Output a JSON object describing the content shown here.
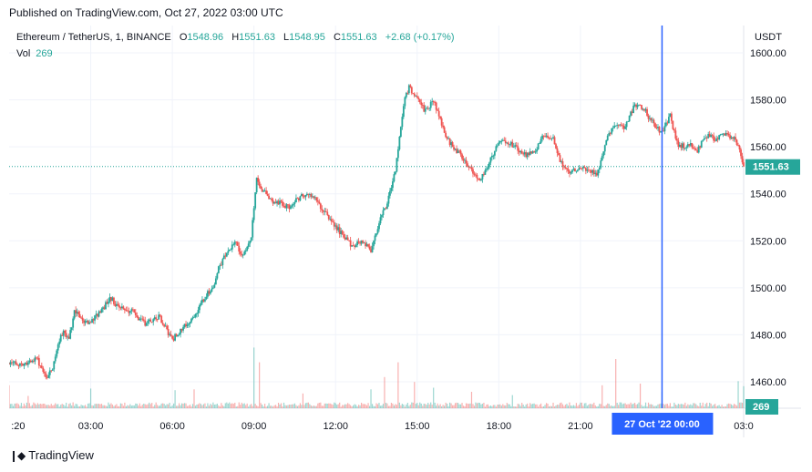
{
  "header": {
    "published": "Published on TradingView.com, Oct 27, 2022 03:00 UTC"
  },
  "legend": {
    "symbol": "Ethereum / TetherUS, 1, BINANCE",
    "o_label": "O",
    "o_value": "1548.96",
    "h_label": "H",
    "h_value": "1551.63",
    "l_label": "L",
    "l_value": "1548.95",
    "c_label": "C",
    "c_value": "1551.63",
    "change": "+2.68 (+0.17%)",
    "vol_label": "Vol",
    "vol_value": "269"
  },
  "axis": {
    "currency": "USDT"
  },
  "crosshair": {
    "time_label": "27 Oct '22   00:00"
  },
  "price_badge": "1551.63",
  "volume_badge": "269",
  "footer": {
    "brand": "TradingView"
  },
  "colors": {
    "up": "#26a69a",
    "down": "#ef5350",
    "crosshair": "#2962ff",
    "grid": "#f0f3fa"
  },
  "chart_data": {
    "type": "candlestick",
    "symbol": "Ethereum / TetherUS",
    "interval": "1",
    "exchange": "BINANCE",
    "y_unit": "USDT",
    "ylim": [
      1452,
      1600
    ],
    "yticks": [
      1600,
      1580,
      1560,
      1540,
      1520,
      1500,
      1480,
      1460
    ],
    "ytick_labels": [
      "1600.00",
      "1580.00",
      "1560.00",
      "1540.00",
      "1520.00",
      "1500.00",
      "1480.00",
      "1460.00"
    ],
    "xtick_labels": [
      ":20",
      "03:00",
      "06:00",
      "09:00",
      "12:00",
      "15:00",
      "18:00",
      "21:00",
      "03:0"
    ],
    "x_hours": [
      0.33,
      3,
      6,
      9,
      12,
      15,
      18,
      21,
      27
    ],
    "x_range_hours": [
      0,
      27
    ],
    "last_price": 1551.63,
    "crosshair_hour": 24,
    "price_path": [
      [
        0.0,
        1468
      ],
      [
        0.5,
        1467
      ],
      [
        1.0,
        1470
      ],
      [
        1.2,
        1466
      ],
      [
        1.4,
        1462
      ],
      [
        1.6,
        1466
      ],
      [
        1.8,
        1476
      ],
      [
        2.0,
        1482
      ],
      [
        2.2,
        1478
      ],
      [
        2.4,
        1490
      ],
      [
        2.7,
        1486
      ],
      [
        3.0,
        1485
      ],
      [
        3.2,
        1488
      ],
      [
        3.5,
        1492
      ],
      [
        3.7,
        1496
      ],
      [
        4.0,
        1492
      ],
      [
        4.5,
        1490
      ],
      [
        5.0,
        1485
      ],
      [
        5.5,
        1488
      ],
      [
        6.0,
        1478
      ],
      [
        6.3,
        1482
      ],
      [
        6.6,
        1485
      ],
      [
        7.0,
        1492
      ],
      [
        7.3,
        1498
      ],
      [
        7.5,
        1500
      ],
      [
        7.7,
        1508
      ],
      [
        8.0,
        1515
      ],
      [
        8.3,
        1520
      ],
      [
        8.6,
        1513
      ],
      [
        8.9,
        1522
      ],
      [
        9.1,
        1547
      ],
      [
        9.3,
        1542
      ],
      [
        9.6,
        1537
      ],
      [
        10.0,
        1536
      ],
      [
        10.3,
        1534
      ],
      [
        10.6,
        1538
      ],
      [
        11.0,
        1540
      ],
      [
        11.3,
        1537
      ],
      [
        11.6,
        1532
      ],
      [
        12.0,
        1526
      ],
      [
        12.3,
        1522
      ],
      [
        12.6,
        1518
      ],
      [
        13.0,
        1520
      ],
      [
        13.3,
        1516
      ],
      [
        13.6,
        1528
      ],
      [
        13.9,
        1536
      ],
      [
        14.2,
        1550
      ],
      [
        14.5,
        1578
      ],
      [
        14.7,
        1586
      ],
      [
        15.0,
        1580
      ],
      [
        15.3,
        1575
      ],
      [
        15.6,
        1580
      ],
      [
        16.0,
        1566
      ],
      [
        16.3,
        1560
      ],
      [
        16.6,
        1557
      ],
      [
        17.0,
        1550
      ],
      [
        17.3,
        1546
      ],
      [
        17.6,
        1552
      ],
      [
        18.0,
        1562
      ],
      [
        18.3,
        1562
      ],
      [
        18.6,
        1560
      ],
      [
        19.0,
        1556
      ],
      [
        19.3,
        1558
      ],
      [
        19.6,
        1564
      ],
      [
        20.0,
        1563
      ],
      [
        20.3,
        1553
      ],
      [
        20.6,
        1549
      ],
      [
        21.0,
        1552
      ],
      [
        21.3,
        1550
      ],
      [
        21.6,
        1548
      ],
      [
        22.0,
        1565
      ],
      [
        22.3,
        1570
      ],
      [
        22.6,
        1568
      ],
      [
        23.0,
        1578
      ],
      [
        23.3,
        1577
      ],
      [
        23.6,
        1571
      ],
      [
        24.0,
        1566
      ],
      [
        24.3,
        1573
      ],
      [
        24.6,
        1560
      ],
      [
        25.0,
        1561
      ],
      [
        25.3,
        1558
      ],
      [
        25.6,
        1565
      ],
      [
        26.0,
        1563
      ],
      [
        26.3,
        1566
      ],
      [
        26.6,
        1564
      ],
      [
        26.8,
        1561
      ],
      [
        27.0,
        1551.63
      ]
    ],
    "volume": {
      "ylim": [
        0,
        1000
      ],
      "baseline": 60,
      "last": 269,
      "spikes": [
        [
          0.0,
          280
        ],
        [
          0.7,
          150
        ],
        [
          3.0,
          240
        ],
        [
          6.1,
          220
        ],
        [
          6.8,
          230
        ],
        [
          9.0,
          740
        ],
        [
          9.2,
          560
        ],
        [
          10.8,
          180
        ],
        [
          13.3,
          230
        ],
        [
          13.8,
          380
        ],
        [
          14.3,
          560
        ],
        [
          14.9,
          320
        ],
        [
          15.6,
          250
        ],
        [
          17.0,
          200
        ],
        [
          18.5,
          160
        ],
        [
          21.8,
          280
        ],
        [
          22.3,
          600
        ],
        [
          23.2,
          300
        ],
        [
          24.0,
          200
        ],
        [
          26.8,
          330
        ]
      ]
    }
  }
}
